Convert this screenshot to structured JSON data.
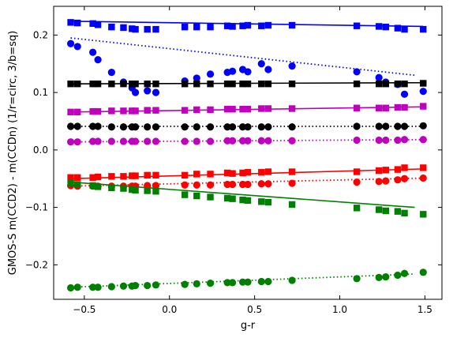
{
  "chart_data": {
    "type": "scatter",
    "xlabel": "g-r",
    "ylabel": "GMOS-S m(CCD2) - m(CCDn) (1/r=circ, 3/b=sq)",
    "xlim": [
      -0.68,
      1.6
    ],
    "ylim": [
      -0.26,
      0.25
    ],
    "xticks": [
      -0.5,
      0.0,
      0.5,
      1.0,
      1.5
    ],
    "xtick_labels": [
      "−0.5",
      "0.0",
      "0.5",
      "1.0",
      "1.5"
    ],
    "yticks": [
      -0.2,
      -0.1,
      0.0,
      0.1,
      0.2
    ],
    "ytick_labels": [
      "−0.2",
      "−0.1",
      "0.0",
      "0.1",
      "0.2"
    ],
    "grid": false,
    "x_positions": [
      -0.58,
      -0.54,
      -0.45,
      -0.42,
      -0.34,
      -0.27,
      -0.22,
      -0.2,
      -0.13,
      -0.08,
      0.09,
      0.16,
      0.24,
      0.34,
      0.37,
      0.43,
      0.46,
      0.54,
      0.58,
      0.72,
      1.1,
      1.23,
      1.27,
      1.34,
      1.38,
      1.49
    ],
    "series": [
      {
        "color": "#0000ff",
        "marker": "square",
        "values": [
          0.222,
          0.221,
          0.22,
          0.218,
          0.214,
          0.213,
          0.211,
          0.21,
          0.21,
          0.21,
          0.214,
          0.214,
          0.214,
          0.216,
          0.215,
          0.216,
          0.217,
          0.216,
          0.217,
          0.217,
          0.216,
          0.215,
          0.214,
          0.212,
          0.21,
          0.21
        ],
        "fit": {
          "x": [
            -0.58,
            1.49
          ],
          "y": [
            0.224,
            0.215
          ],
          "style": "solid"
        }
      },
      {
        "color": "#0000ff",
        "marker": "circle",
        "values": [
          0.185,
          0.18,
          0.17,
          0.157,
          0.135,
          0.118,
          0.108,
          0.1,
          0.103,
          0.1,
          0.12,
          0.125,
          0.132,
          0.135,
          0.137,
          0.14,
          0.136,
          0.15,
          0.14,
          0.146,
          0.136,
          0.126,
          0.118,
          0.114,
          0.097,
          0.102
        ],
        "fit": {
          "x": [
            -0.58,
            1.44
          ],
          "y": [
            0.195,
            0.13
          ],
          "style": "dotted"
        }
      },
      {
        "color": "#000000",
        "marker": "square",
        "values": [
          0.115,
          0.115,
          0.115,
          0.115,
          0.115,
          0.115,
          0.115,
          0.115,
          0.115,
          0.115,
          0.115,
          0.115,
          0.115,
          0.115,
          0.115,
          0.115,
          0.115,
          0.115,
          0.115,
          0.115,
          0.115,
          0.115,
          0.115,
          0.115,
          0.115,
          0.116
        ],
        "fit": {
          "x": [
            -0.58,
            1.49
          ],
          "y": [
            0.115,
            0.117
          ],
          "style": "solid"
        }
      },
      {
        "color": "#bf00bf",
        "marker": "square",
        "values": [
          0.066,
          0.066,
          0.067,
          0.067,
          0.068,
          0.068,
          0.068,
          0.068,
          0.069,
          0.069,
          0.069,
          0.07,
          0.07,
          0.071,
          0.071,
          0.071,
          0.071,
          0.072,
          0.072,
          0.072,
          0.073,
          0.073,
          0.073,
          0.074,
          0.074,
          0.076
        ],
        "fit": {
          "x": [
            -0.58,
            1.49
          ],
          "y": [
            0.066,
            0.075
          ],
          "style": "solid"
        }
      },
      {
        "color": "#000000",
        "marker": "circle",
        "values": [
          0.041,
          0.041,
          0.041,
          0.041,
          0.04,
          0.04,
          0.04,
          0.04,
          0.04,
          0.04,
          0.04,
          0.04,
          0.04,
          0.04,
          0.04,
          0.04,
          0.04,
          0.04,
          0.04,
          0.04,
          0.041,
          0.041,
          0.041,
          0.041,
          0.041,
          0.042
        ],
        "fit": {
          "x": [
            -0.58,
            1.49
          ],
          "y": [
            0.041,
            0.041
          ],
          "style": "dotted"
        }
      },
      {
        "color": "#bf00bf",
        "marker": "circle",
        "values": [
          0.014,
          0.014,
          0.015,
          0.015,
          0.015,
          0.015,
          0.015,
          0.015,
          0.015,
          0.015,
          0.015,
          0.015,
          0.015,
          0.016,
          0.016,
          0.016,
          0.016,
          0.016,
          0.016,
          0.016,
          0.017,
          0.017,
          0.017,
          0.017,
          0.018,
          0.018
        ],
        "fit": {
          "x": [
            -0.58,
            1.49
          ],
          "y": [
            0.014,
            0.018
          ],
          "style": "dotted"
        }
      },
      {
        "color": "#ff0000",
        "marker": "square",
        "values": [
          -0.048,
          -0.048,
          -0.048,
          -0.047,
          -0.046,
          -0.046,
          -0.045,
          -0.045,
          -0.044,
          -0.044,
          -0.044,
          -0.042,
          -0.042,
          -0.04,
          -0.041,
          -0.04,
          -0.039,
          -0.039,
          -0.038,
          -0.038,
          -0.038,
          -0.036,
          -0.035,
          -0.034,
          -0.031,
          -0.031
        ],
        "fit": {
          "x": [
            -0.58,
            1.49
          ],
          "y": [
            -0.05,
            -0.033
          ],
          "style": "solid"
        }
      },
      {
        "color": "#ff0000",
        "marker": "circle",
        "values": [
          -0.062,
          -0.063,
          -0.063,
          -0.063,
          -0.063,
          -0.063,
          -0.063,
          -0.063,
          -0.062,
          -0.062,
          -0.061,
          -0.061,
          -0.061,
          -0.06,
          -0.06,
          -0.06,
          -0.06,
          -0.059,
          -0.059,
          -0.058,
          -0.056,
          -0.055,
          -0.054,
          -0.052,
          -0.05,
          -0.049
        ],
        "fit": {
          "x": [
            -0.58,
            1.49
          ],
          "y": [
            -0.063,
            -0.049
          ],
          "style": "dotted"
        }
      },
      {
        "color": "#008000",
        "marker": "square",
        "values": [
          -0.058,
          -0.06,
          -0.062,
          -0.064,
          -0.066,
          -0.067,
          -0.069,
          -0.07,
          -0.071,
          -0.072,
          -0.078,
          -0.08,
          -0.082,
          -0.084,
          -0.085,
          -0.087,
          -0.088,
          -0.09,
          -0.091,
          -0.095,
          -0.101,
          -0.104,
          -0.106,
          -0.107,
          -0.11,
          -0.112
        ],
        "fit": {
          "x": [
            -0.58,
            1.44
          ],
          "y": [
            -0.056,
            -0.1
          ],
          "style": "solid"
        }
      },
      {
        "color": "#008000",
        "marker": "circle",
        "values": [
          -0.24,
          -0.239,
          -0.239,
          -0.239,
          -0.238,
          -0.237,
          -0.237,
          -0.236,
          -0.236,
          -0.235,
          -0.234,
          -0.233,
          -0.232,
          -0.231,
          -0.231,
          -0.23,
          -0.23,
          -0.229,
          -0.229,
          -0.227,
          -0.224,
          -0.222,
          -0.221,
          -0.218,
          -0.215,
          -0.213
        ],
        "fit": {
          "x": [
            -0.58,
            1.44
          ],
          "y": [
            -0.239,
            -0.216
          ],
          "style": "dotted"
        }
      }
    ]
  }
}
